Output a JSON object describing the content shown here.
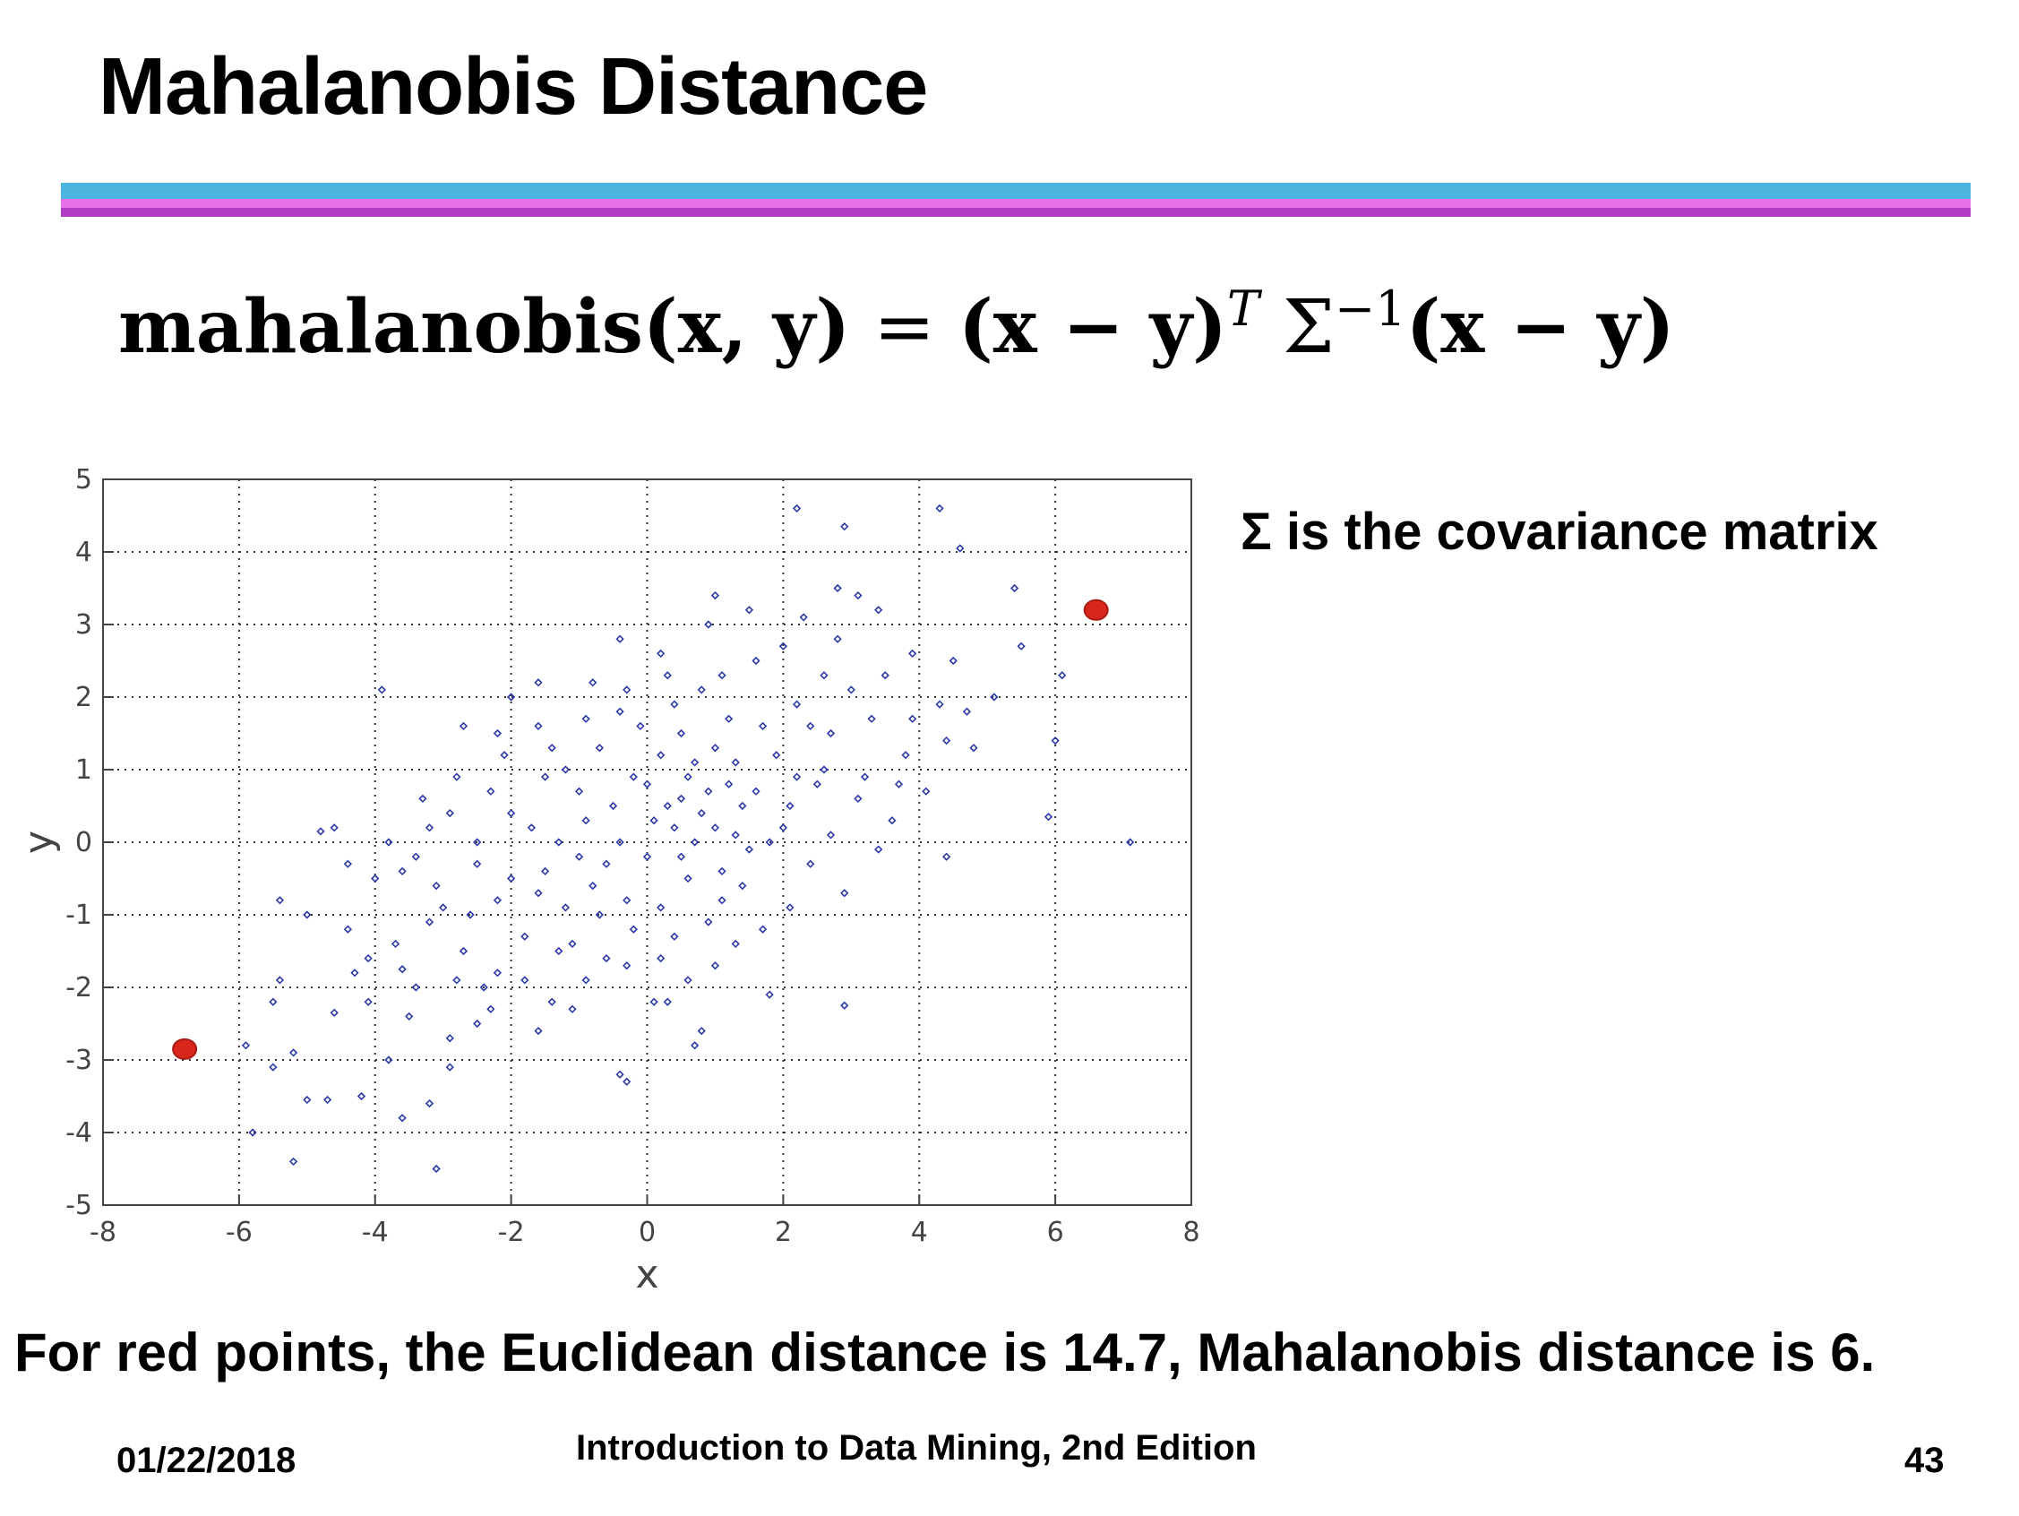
{
  "slide": {
    "title": "Mahalanobis Distance",
    "formula": {
      "fn": "mahalanobis",
      "args": "(x, y)",
      "eq": " = ",
      "left": "(x − y)",
      "sup_t": "T",
      "sigma": " Σ",
      "sup_inv": "−1",
      "right": "(x − y)"
    },
    "note": "Σ is the covariance matrix",
    "caption": "For red points, the Euclidean distance is 14.7, Mahalanobis distance is 6.",
    "footer": {
      "date": "01/22/2018",
      "book": "Introduction to Data Mining, 2nd Edition",
      "page": "43"
    }
  },
  "colors": {
    "rule_top": "#4cb6de",
    "rule_mid": "#e56fe8",
    "rule_bottom": "#b23ec6",
    "points": "#2b3aa8",
    "highlight": "#d9261c"
  },
  "chart_data": {
    "type": "scatter",
    "xlabel": "x",
    "ylabel": "y",
    "xlim": [
      -8,
      8
    ],
    "ylim": [
      -5,
      5
    ],
    "xticks": [
      -8,
      -6,
      -4,
      -2,
      0,
      2,
      4,
      6,
      8
    ],
    "yticks": [
      -5,
      -4,
      -3,
      -2,
      -1,
      0,
      1,
      2,
      3,
      4,
      5
    ],
    "grid": true,
    "highlighted": [
      {
        "x": -6.8,
        "y": -2.85
      },
      {
        "x": 6.6,
        "y": 3.2
      }
    ],
    "points": [
      [
        -5.8,
        -4.0
      ],
      [
        -5.2,
        -4.4
      ],
      [
        -3.1,
        -4.5
      ],
      [
        -4.2,
        -3.5
      ],
      [
        -5.0,
        -3.55
      ],
      [
        -4.7,
        -3.55
      ],
      [
        -5.5,
        -3.1
      ],
      [
        -3.6,
        -3.8
      ],
      [
        -3.2,
        -3.6
      ],
      [
        -5.9,
        -2.8
      ],
      [
        -5.2,
        -2.9
      ],
      [
        -4.6,
        -2.35
      ],
      [
        -3.8,
        -3.0
      ],
      [
        -2.9,
        -3.1
      ],
      [
        -5.5,
        -2.2
      ],
      [
        -4.1,
        -2.2
      ],
      [
        -3.4,
        -2.0
      ],
      [
        -2.5,
        -2.5
      ],
      [
        -5.4,
        -1.9
      ],
      [
        -4.3,
        -1.8
      ],
      [
        -3.6,
        -1.75
      ],
      [
        -2.8,
        -1.9
      ],
      [
        -2.2,
        -1.8
      ],
      [
        -1.4,
        -2.2
      ],
      [
        -0.4,
        -3.2
      ],
      [
        -0.3,
        -3.3
      ],
      [
        0.8,
        -2.6
      ],
      [
        0.7,
        -2.8
      ],
      [
        -5.4,
        -0.8
      ],
      [
        -5.0,
        -1.0
      ],
      [
        -4.4,
        -1.2
      ],
      [
        -3.7,
        -1.4
      ],
      [
        -3.2,
        -1.1
      ],
      [
        -2.6,
        -1.0
      ],
      [
        -1.8,
        -1.3
      ],
      [
        -1.1,
        -1.4
      ],
      [
        -0.6,
        -1.6
      ],
      [
        0.1,
        -2.2
      ],
      [
        0.3,
        -2.2
      ],
      [
        1.0,
        -1.7
      ],
      [
        -4.6,
        0.2
      ],
      [
        -4.8,
        0.15
      ],
      [
        -4.0,
        -0.5
      ],
      [
        -3.6,
        -0.4
      ],
      [
        -3.1,
        -0.6
      ],
      [
        -2.5,
        -0.3
      ],
      [
        -2.0,
        -0.5
      ],
      [
        -1.6,
        -0.7
      ],
      [
        -1.2,
        -0.9
      ],
      [
        -0.8,
        -0.6
      ],
      [
        -0.3,
        -0.8
      ],
      [
        0.2,
        -0.9
      ],
      [
        0.6,
        -0.5
      ],
      [
        1.1,
        -0.8
      ],
      [
        1.7,
        -1.2
      ],
      [
        1.8,
        -2.1
      ],
      [
        2.9,
        -2.25
      ],
      [
        -3.3,
        0.6
      ],
      [
        -2.9,
        0.4
      ],
      [
        -2.3,
        0.7
      ],
      [
        -1.7,
        0.2
      ],
      [
        -1.3,
        0.0
      ],
      [
        -0.9,
        0.3
      ],
      [
        -0.4,
        0.0
      ],
      [
        0.0,
        -0.2
      ],
      [
        0.4,
        0.2
      ],
      [
        0.8,
        0.4
      ],
      [
        1.3,
        0.1
      ],
      [
        1.8,
        0.0
      ],
      [
        2.4,
        -0.3
      ],
      [
        2.9,
        -0.7
      ],
      [
        3.4,
        -0.1
      ],
      [
        -3.9,
        2.1
      ],
      [
        -2.7,
        1.6
      ],
      [
        -2.1,
        1.2
      ],
      [
        -1.6,
        1.6
      ],
      [
        -1.2,
        1.0
      ],
      [
        -0.7,
        1.3
      ],
      [
        -0.2,
        0.9
      ],
      [
        0.2,
        1.2
      ],
      [
        0.7,
        1.1
      ],
      [
        1.2,
        0.8
      ],
      [
        1.6,
        0.7
      ],
      [
        2.1,
        0.5
      ],
      [
        2.6,
        1.0
      ],
      [
        3.1,
        0.6
      ],
      [
        3.6,
        0.3
      ],
      [
        4.1,
        0.7
      ],
      [
        4.4,
        -0.2
      ],
      [
        -2.0,
        2.0
      ],
      [
        -1.6,
        2.2
      ],
      [
        -0.8,
        2.2
      ],
      [
        -0.4,
        1.8
      ],
      [
        0.3,
        2.3
      ],
      [
        0.8,
        2.1
      ],
      [
        1.2,
        1.7
      ],
      [
        1.7,
        1.6
      ],
      [
        2.2,
        1.9
      ],
      [
        2.7,
        1.5
      ],
      [
        3.3,
        1.7
      ],
      [
        3.8,
        1.2
      ],
      [
        4.4,
        1.4
      ],
      [
        4.8,
        1.3
      ],
      [
        -0.4,
        2.8
      ],
      [
        0.2,
        2.6
      ],
      [
        0.9,
        3.0
      ],
      [
        1.5,
        3.2
      ],
      [
        2.3,
        3.1
      ],
      [
        2.8,
        2.8
      ],
      [
        3.4,
        3.2
      ],
      [
        3.9,
        2.6
      ],
      [
        4.5,
        2.5
      ],
      [
        5.1,
        2.0
      ],
      [
        5.5,
        2.7
      ],
      [
        6.1,
        2.3
      ],
      [
        6.0,
        1.4
      ],
      [
        5.9,
        0.35
      ],
      [
        7.1,
        0.0
      ],
      [
        2.2,
        4.6
      ],
      [
        2.9,
        4.35
      ],
      [
        4.3,
        4.6
      ],
      [
        4.6,
        4.05
      ],
      [
        2.8,
        3.5
      ],
      [
        3.1,
        3.4
      ],
      [
        1.0,
        3.4
      ],
      [
        5.4,
        3.5
      ],
      [
        0.5,
        0.6
      ],
      [
        0.9,
        0.7
      ],
      [
        1.4,
        0.5
      ],
      [
        -0.6,
        -0.3
      ],
      [
        -1.0,
        -0.2
      ],
      [
        -1.5,
        -0.4
      ],
      [
        -2.2,
        -0.8
      ],
      [
        -2.7,
        -1.5
      ],
      [
        -3.0,
        -0.9
      ],
      [
        0.1,
        0.3
      ],
      [
        0.5,
        -0.2
      ],
      [
        1.0,
        0.2
      ],
      [
        1.5,
        -0.1
      ],
      [
        2.0,
        0.2
      ],
      [
        -0.2,
        -1.2
      ],
      [
        -0.7,
        -1.0
      ],
      [
        -1.3,
        -1.5
      ],
      [
        -1.8,
        -1.9
      ],
      [
        -2.4,
        -2.0
      ],
      [
        0.4,
        -1.3
      ],
      [
        0.9,
        -1.1
      ],
      [
        1.4,
        -0.6
      ],
      [
        2.1,
        -0.9
      ],
      [
        2.5,
        0.8
      ],
      [
        -0.1,
        1.6
      ],
      [
        0.5,
        1.5
      ],
      [
        1.0,
        1.3
      ],
      [
        1.9,
        1.2
      ],
      [
        2.4,
        1.6
      ],
      [
        -1.0,
        0.7
      ],
      [
        -1.5,
        0.9
      ],
      [
        -2.0,
        0.4
      ],
      [
        -2.5,
        0.0
      ],
      [
        -3.4,
        -0.2
      ],
      [
        -0.5,
        0.5
      ],
      [
        0.0,
        0.8
      ],
      [
        0.3,
        0.5
      ],
      [
        0.7,
        0.0
      ],
      [
        1.1,
        -0.4
      ],
      [
        -0.9,
        -1.9
      ],
      [
        -0.3,
        -1.7
      ],
      [
        0.2,
        -1.6
      ],
      [
        0.6,
        -1.9
      ],
      [
        1.3,
        -1.4
      ],
      [
        -4.1,
        -1.6
      ],
      [
        -3.5,
        -2.4
      ],
      [
        -2.9,
        -2.7
      ],
      [
        -2.3,
        -2.3
      ],
      [
        -1.6,
        -2.6
      ],
      [
        -1.1,
        -2.3
      ],
      [
        -4.4,
        -0.3
      ],
      [
        -3.8,
        0.0
      ],
      [
        -3.2,
        0.2
      ],
      [
        -2.8,
        0.9
      ],
      [
        -2.2,
        1.5
      ],
      [
        -1.4,
        1.3
      ],
      [
        -0.9,
        1.7
      ],
      [
        -0.3,
        2.1
      ],
      [
        0.4,
        1.9
      ],
      [
        1.1,
        2.3
      ],
      [
        1.6,
        2.5
      ],
      [
        2.0,
        2.7
      ],
      [
        2.6,
        2.3
      ],
      [
        3.0,
        2.1
      ],
      [
        3.5,
        2.3
      ],
      [
        3.9,
        1.7
      ],
      [
        4.3,
        1.9
      ],
      [
        4.7,
        1.8
      ],
      [
        2.2,
        0.9
      ],
      [
        2.7,
        0.1
      ],
      [
        3.2,
        0.9
      ],
      [
        3.7,
        0.8
      ],
      [
        1.3,
        1.1
      ],
      [
        0.6,
        0.9
      ]
    ]
  }
}
